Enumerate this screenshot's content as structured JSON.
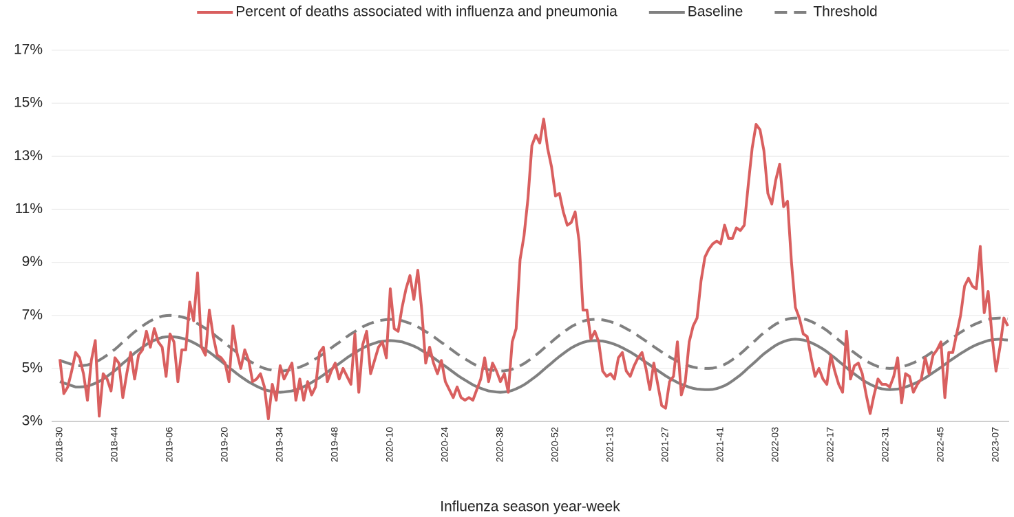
{
  "chart_data": {
    "type": "line",
    "x_title": "Influenza season year-week",
    "legend": "top",
    "grid": true,
    "ylim": [
      3,
      17
    ],
    "yticks": [
      {
        "value": 3,
        "label": "3%"
      },
      {
        "value": 5,
        "label": "5%"
      },
      {
        "value": 7,
        "label": "7%"
      },
      {
        "value": 9,
        "label": "9%"
      },
      {
        "value": 11,
        "label": "11%"
      },
      {
        "value": 13,
        "label": "13%"
      },
      {
        "value": 15,
        "label": "15%"
      },
      {
        "value": 17,
        "label": "17%"
      }
    ],
    "categories": [
      "2018-30",
      null,
      null,
      null,
      null,
      null,
      null,
      null,
      null,
      null,
      null,
      null,
      null,
      null,
      "2018-44",
      null,
      null,
      null,
      null,
      null,
      null,
      null,
      null,
      null,
      null,
      null,
      null,
      null,
      "2019-06",
      null,
      null,
      null,
      null,
      null,
      null,
      null,
      null,
      null,
      null,
      null,
      null,
      null,
      "2019-20",
      null,
      null,
      null,
      null,
      null,
      null,
      null,
      null,
      null,
      null,
      null,
      null,
      null,
      "2019-34",
      null,
      null,
      null,
      null,
      null,
      null,
      null,
      null,
      null,
      null,
      null,
      null,
      null,
      "2019-48",
      null,
      null,
      null,
      null,
      null,
      null,
      null,
      null,
      null,
      null,
      null,
      null,
      null,
      "2020-10",
      null,
      null,
      null,
      null,
      null,
      null,
      null,
      null,
      null,
      null,
      null,
      null,
      null,
      "2020-24",
      null,
      null,
      null,
      null,
      null,
      null,
      null,
      null,
      null,
      null,
      null,
      null,
      null,
      "2020-38",
      null,
      null,
      null,
      null,
      null,
      null,
      null,
      null,
      null,
      null,
      null,
      null,
      null,
      "2020-52",
      null,
      null,
      null,
      null,
      null,
      null,
      null,
      null,
      null,
      null,
      null,
      null,
      null,
      "2021-13",
      null,
      null,
      null,
      null,
      null,
      null,
      null,
      null,
      null,
      null,
      null,
      null,
      null,
      "2021-27",
      null,
      null,
      null,
      null,
      null,
      null,
      null,
      null,
      null,
      null,
      null,
      null,
      null,
      "2021-41",
      null,
      null,
      null,
      null,
      null,
      null,
      null,
      null,
      null,
      null,
      null,
      null,
      null,
      "2022-03",
      null,
      null,
      null,
      null,
      null,
      null,
      null,
      null,
      null,
      null,
      null,
      null,
      null,
      "2022-17",
      null,
      null,
      null,
      null,
      null,
      null,
      null,
      null,
      null,
      null,
      null,
      null,
      null,
      "2022-31",
      null,
      null,
      null,
      null,
      null,
      null,
      null,
      null,
      null,
      null,
      null,
      null,
      null,
      "2022-45",
      null,
      null,
      null,
      null,
      null,
      null,
      null,
      null,
      null,
      null,
      null,
      null,
      null,
      "2023-07",
      null,
      null,
      null
    ],
    "series": [
      {
        "name": "Percent of deaths associated with influenza and pneumonia",
        "color": "#d95f5f",
        "line_style": "solid",
        "values": [
          5.35,
          4.05,
          4.3,
          4.9,
          5.6,
          5.4,
          4.8,
          3.8,
          5.3,
          6.05,
          3.2,
          4.8,
          4.6,
          4.15,
          5.4,
          5.2,
          3.9,
          4.8,
          5.6,
          4.6,
          5.5,
          5.7,
          6.4,
          5.8,
          6.5,
          6.0,
          5.8,
          4.7,
          6.3,
          6.0,
          4.5,
          5.7,
          5.7,
          7.5,
          6.8,
          8.6,
          5.8,
          5.5,
          7.2,
          6.2,
          5.5,
          5.4,
          5.2,
          4.5,
          6.6,
          5.6,
          5.0,
          5.7,
          5.3,
          4.5,
          4.6,
          4.8,
          4.3,
          3.1,
          4.4,
          3.8,
          5.1,
          4.6,
          4.9,
          5.2,
          3.8,
          4.6,
          3.8,
          4.5,
          4.0,
          4.3,
          5.6,
          5.8,
          4.5,
          4.9,
          5.2,
          4.6,
          5.0,
          4.7,
          4.4,
          6.3,
          4.1,
          5.9,
          6.4,
          4.8,
          5.3,
          5.8,
          6.0,
          5.4,
          8.0,
          6.5,
          6.4,
          7.3,
          8.0,
          8.5,
          7.6,
          8.7,
          7.2,
          5.2,
          5.8,
          5.2,
          4.8,
          5.3,
          4.5,
          4.2,
          3.9,
          4.3,
          3.9,
          3.8,
          3.9,
          3.8,
          4.2,
          4.6,
          5.4,
          4.5,
          5.2,
          4.9,
          4.5,
          4.8,
          4.1,
          6.0,
          6.5,
          9.1,
          10.0,
          11.4,
          13.4,
          13.8,
          13.5,
          14.4,
          13.3,
          12.6,
          11.5,
          11.6,
          10.9,
          10.4,
          10.5,
          10.9,
          9.8,
          7.2,
          7.2,
          6.1,
          6.4,
          6.0,
          4.9,
          4.7,
          4.8,
          4.6,
          5.4,
          5.6,
          4.9,
          4.7,
          5.1,
          5.4,
          5.6,
          5.0,
          4.2,
          5.2,
          4.4,
          3.6,
          3.5,
          4.5,
          4.7,
          6.0,
          4.0,
          4.5,
          6.0,
          6.6,
          6.9,
          8.3,
          9.2,
          9.5,
          9.7,
          9.8,
          9.7,
          10.4,
          9.9,
          9.9,
          10.3,
          10.2,
          10.4,
          11.9,
          13.3,
          14.2,
          14.0,
          13.2,
          11.6,
          11.2,
          12.1,
          12.7,
          11.1,
          11.3,
          9.0,
          7.3,
          6.9,
          6.3,
          6.2,
          5.4,
          4.7,
          5.0,
          4.6,
          4.4,
          5.5,
          4.9,
          4.4,
          4.1,
          6.4,
          4.6,
          5.1,
          5.2,
          4.8,
          4.0,
          3.3,
          4.0,
          4.6,
          4.4,
          4.4,
          4.3,
          4.7,
          5.4,
          3.7,
          4.8,
          4.7,
          4.1,
          4.4,
          4.6,
          5.4,
          4.8,
          5.5,
          5.7,
          6.0,
          3.9,
          5.6,
          5.6,
          6.3,
          7.0,
          8.1,
          8.4,
          8.1,
          8.0,
          9.6,
          7.1,
          7.9,
          6.2,
          4.9,
          5.8,
          6.9,
          6.6
        ]
      },
      {
        "name": "Baseline",
        "color": "#808080",
        "line_style": "solid",
        "values": [
          4.5,
          4.45,
          4.4,
          4.35,
          4.3,
          4.3,
          4.31,
          4.33,
          4.38,
          4.44,
          4.51,
          4.6,
          4.7,
          4.81,
          4.92,
          5.05,
          5.19,
          5.31,
          5.45,
          5.58,
          5.69,
          5.8,
          5.9,
          5.99,
          6.06,
          6.12,
          6.17,
          6.19,
          6.2,
          6.19,
          6.17,
          6.14,
          6.1,
          6.04,
          5.97,
          5.89,
          5.8,
          5.71,
          5.61,
          5.5,
          5.38,
          5.27,
          5.15,
          5.03,
          4.92,
          4.8,
          4.69,
          4.59,
          4.49,
          4.41,
          4.33,
          4.26,
          4.2,
          4.16,
          4.13,
          4.11,
          4.1,
          4.11,
          4.13,
          4.15,
          4.2,
          4.25,
          4.31,
          4.38,
          4.47,
          4.56,
          4.65,
          4.75,
          4.86,
          4.97,
          5.08,
          5.18,
          5.29,
          5.4,
          5.5,
          5.59,
          5.68,
          5.77,
          5.84,
          5.9,
          5.95,
          6.0,
          6.02,
          6.04,
          6.05,
          6.04,
          6.02,
          6.0,
          5.95,
          5.9,
          5.84,
          5.77,
          5.68,
          5.59,
          5.5,
          5.4,
          5.29,
          5.18,
          5.08,
          4.97,
          4.86,
          4.75,
          4.65,
          4.56,
          4.47,
          4.38,
          4.31,
          4.25,
          4.2,
          4.15,
          4.13,
          4.11,
          4.1,
          4.11,
          4.13,
          4.17,
          4.23,
          4.3,
          4.38,
          4.48,
          4.59,
          4.7,
          4.82,
          4.95,
          5.08,
          5.2,
          5.33,
          5.45,
          5.56,
          5.67,
          5.77,
          5.85,
          5.92,
          5.98,
          6.02,
          6.04,
          6.05,
          6.04,
          6.03,
          6.0,
          5.96,
          5.91,
          5.85,
          5.78,
          5.7,
          5.62,
          5.53,
          5.43,
          5.33,
          5.23,
          5.13,
          5.02,
          4.92,
          4.82,
          4.72,
          4.63,
          4.55,
          4.47,
          4.4,
          4.35,
          4.29,
          4.25,
          4.22,
          4.21,
          4.2,
          4.2,
          4.21,
          4.24,
          4.29,
          4.35,
          4.43,
          4.53,
          4.64,
          4.75,
          4.88,
          5.02,
          5.15,
          5.28,
          5.42,
          5.55,
          5.66,
          5.77,
          5.87,
          5.95,
          6.01,
          6.06,
          6.09,
          6.1,
          6.09,
          6.07,
          6.03,
          5.97,
          5.9,
          5.82,
          5.73,
          5.63,
          5.51,
          5.4,
          5.27,
          5.15,
          5.03,
          4.9,
          4.79,
          4.68,
          4.57,
          4.48,
          4.4,
          4.33,
          4.27,
          4.23,
          4.21,
          4.2,
          4.21,
          4.22,
          4.25,
          4.3,
          4.35,
          4.41,
          4.48,
          4.56,
          4.64,
          4.74,
          4.84,
          4.94,
          5.04,
          5.15,
          5.26,
          5.36,
          5.46,
          5.56,
          5.65,
          5.74,
          5.82,
          5.89,
          5.95,
          6.0,
          6.05,
          6.08,
          6.09,
          6.1,
          6.08,
          6.07
        ]
      },
      {
        "name": "Threshold",
        "color": "#808080",
        "line_style": "dashed",
        "values": [
          5.3,
          5.25,
          5.2,
          5.15,
          5.1,
          5.1,
          5.11,
          5.13,
          5.18,
          5.24,
          5.31,
          5.4,
          5.5,
          5.61,
          5.72,
          5.85,
          5.99,
          6.11,
          6.25,
          6.38,
          6.49,
          6.6,
          6.7,
          6.79,
          6.86,
          6.92,
          6.97,
          6.99,
          7.0,
          6.99,
          6.97,
          6.94,
          6.9,
          6.84,
          6.77,
          6.69,
          6.6,
          6.51,
          6.41,
          6.3,
          6.18,
          6.07,
          5.95,
          5.83,
          5.72,
          5.6,
          5.49,
          5.39,
          5.29,
          5.21,
          5.13,
          5.06,
          5.0,
          4.96,
          4.93,
          4.91,
          4.9,
          4.91,
          4.93,
          4.95,
          5.0,
          5.05,
          5.11,
          5.18,
          5.27,
          5.36,
          5.45,
          5.55,
          5.66,
          5.77,
          5.88,
          5.98,
          6.09,
          6.2,
          6.3,
          6.39,
          6.48,
          6.57,
          6.64,
          6.7,
          6.75,
          6.8,
          6.82,
          6.84,
          6.85,
          6.84,
          6.82,
          6.8,
          6.75,
          6.7,
          6.64,
          6.57,
          6.48,
          6.39,
          6.3,
          6.2,
          6.09,
          5.98,
          5.88,
          5.77,
          5.66,
          5.55,
          5.45,
          5.36,
          5.27,
          5.18,
          5.11,
          5.05,
          5.0,
          4.95,
          4.93,
          4.91,
          4.9,
          4.91,
          4.93,
          4.97,
          5.03,
          5.1,
          5.18,
          5.28,
          5.39,
          5.5,
          5.62,
          5.75,
          5.88,
          6.0,
          6.13,
          6.25,
          6.36,
          6.47,
          6.57,
          6.65,
          6.72,
          6.78,
          6.82,
          6.84,
          6.85,
          6.84,
          6.83,
          6.8,
          6.76,
          6.71,
          6.65,
          6.58,
          6.5,
          6.42,
          6.33,
          6.23,
          6.13,
          6.03,
          5.93,
          5.82,
          5.72,
          5.62,
          5.52,
          5.43,
          5.35,
          5.27,
          5.2,
          5.15,
          5.09,
          5.05,
          5.02,
          5.01,
          5.0,
          5.0,
          5.01,
          5.04,
          5.09,
          5.15,
          5.23,
          5.33,
          5.44,
          5.55,
          5.68,
          5.82,
          5.95,
          6.08,
          6.22,
          6.35,
          6.46,
          6.57,
          6.67,
          6.75,
          6.81,
          6.86,
          6.89,
          6.9,
          6.89,
          6.87,
          6.83,
          6.77,
          6.7,
          6.62,
          6.53,
          6.43,
          6.31,
          6.2,
          6.07,
          5.95,
          5.83,
          5.7,
          5.59,
          5.48,
          5.37,
          5.28,
          5.2,
          5.13,
          5.07,
          5.03,
          5.01,
          5.0,
          5.01,
          5.02,
          5.05,
          5.1,
          5.15,
          5.21,
          5.28,
          5.36,
          5.44,
          5.54,
          5.64,
          5.74,
          5.84,
          5.95,
          6.06,
          6.16,
          6.26,
          6.36,
          6.45,
          6.54,
          6.62,
          6.69,
          6.75,
          6.8,
          6.85,
          6.88,
          6.89,
          6.9,
          6.88,
          6.87
        ]
      }
    ]
  }
}
